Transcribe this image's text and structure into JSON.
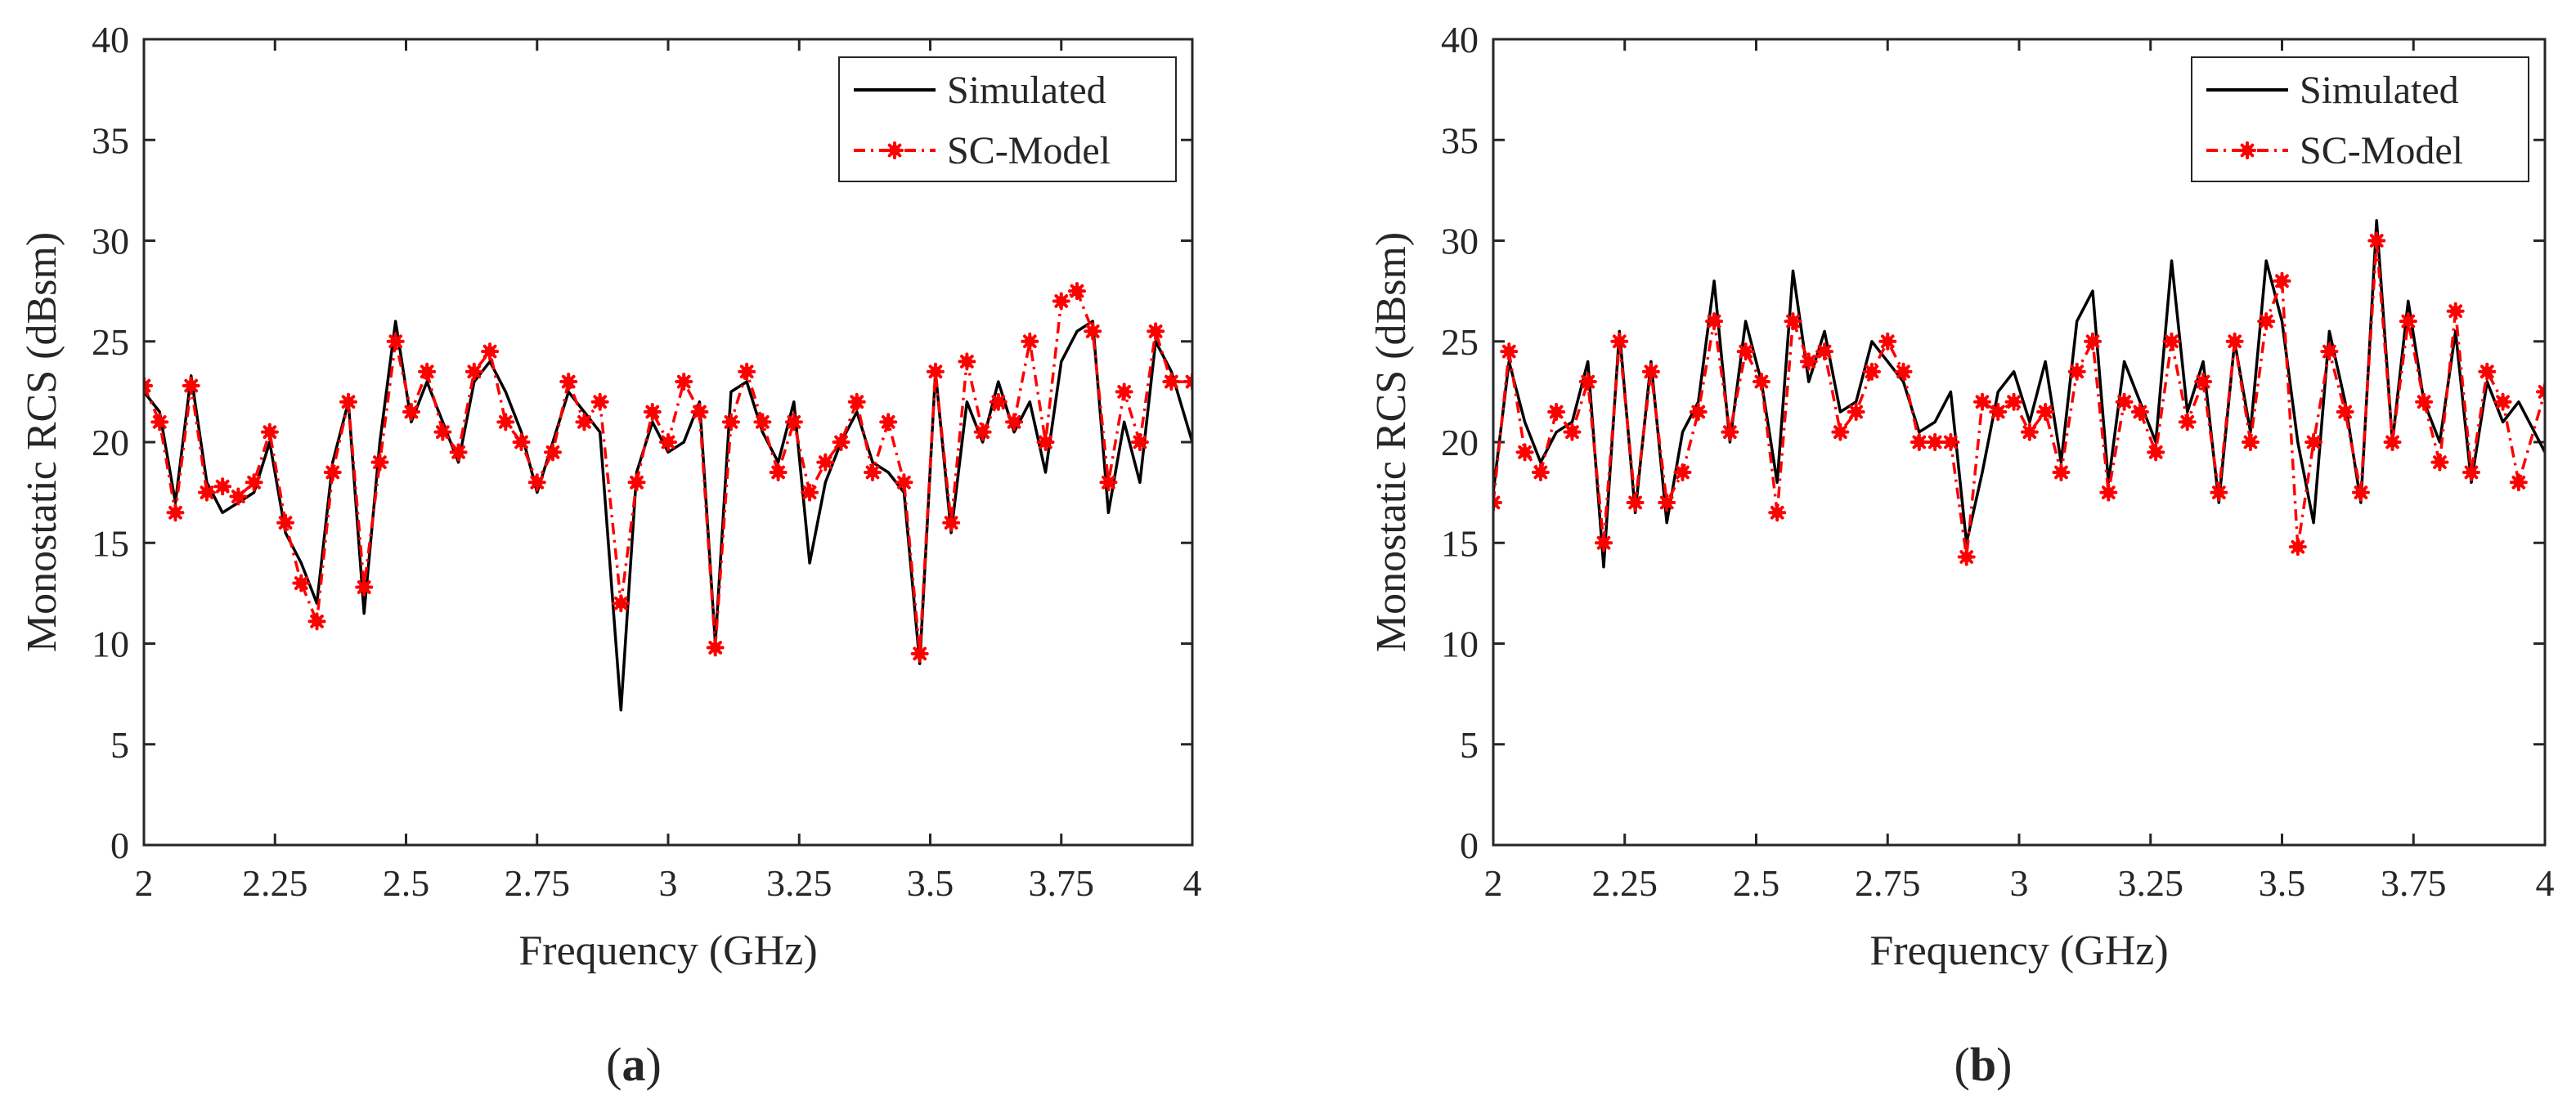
{
  "chart_data": [
    {
      "type": "line",
      "panel_label": "a",
      "caption_open": "(",
      "caption_close": ")",
      "xlabel": "Frequency (GHz)",
      "ylabel": "Monostatic RCS (dBsm)",
      "xlim": [
        2,
        4
      ],
      "ylim": [
        0,
        40
      ],
      "xticks": [
        2,
        2.25,
        2.5,
        2.75,
        3,
        3.25,
        3.5,
        3.75,
        4
      ],
      "xtick_labels": [
        "2",
        "2.25",
        "2.5",
        "2.75",
        "3",
        "3.25",
        "3.5",
        "3.75",
        "4"
      ],
      "yticks": [
        0,
        5,
        10,
        15,
        20,
        25,
        30,
        35,
        40
      ],
      "ytick_labels": [
        "0",
        "5",
        "10",
        "15",
        "20",
        "25",
        "30",
        "35",
        "40"
      ],
      "grid": false,
      "legend_position": "top-right",
      "colors": {
        "simulated": "#000000",
        "model": "#ff0000"
      },
      "series": [
        {
          "name": "Simulated",
          "style": "solid",
          "x": [
            2.0,
            2.03,
            2.06,
            2.09,
            2.12,
            2.15,
            2.18,
            2.21,
            2.24,
            2.27,
            2.3,
            2.33,
            2.36,
            2.39,
            2.42,
            2.45,
            2.48,
            2.51,
            2.54,
            2.57,
            2.6,
            2.63,
            2.66,
            2.69,
            2.72,
            2.75,
            2.78,
            2.81,
            2.84,
            2.87,
            2.91,
            2.94,
            2.97,
            3.0,
            3.03,
            3.06,
            3.09,
            3.12,
            3.15,
            3.18,
            3.21,
            3.24,
            3.27,
            3.3,
            3.33,
            3.36,
            3.39,
            3.42,
            3.45,
            3.48,
            3.51,
            3.54,
            3.57,
            3.6,
            3.63,
            3.66,
            3.69,
            3.72,
            3.75,
            3.78,
            3.81,
            3.84,
            3.87,
            3.9,
            3.93,
            3.96,
            4.0
          ],
          "values": [
            22.5,
            21.5,
            17.0,
            23.3,
            18.0,
            16.5,
            17.0,
            17.5,
            20.0,
            15.5,
            14.0,
            12.0,
            19.0,
            22.0,
            11.5,
            20.0,
            26.0,
            21.0,
            23.0,
            21.0,
            19.0,
            23.0,
            24.0,
            22.5,
            20.5,
            17.5,
            20.0,
            22.5,
            21.5,
            20.5,
            6.7,
            18.5,
            21.0,
            19.5,
            20.0,
            22.0,
            10.0,
            22.5,
            23.0,
            20.5,
            19.0,
            22.0,
            14.0,
            18.0,
            20.0,
            21.5,
            19.0,
            18.5,
            17.5,
            9.0,
            23.5,
            15.5,
            22.0,
            20.0,
            23.0,
            20.5,
            22.0,
            18.5,
            24.0,
            25.5,
            26.0,
            16.5,
            21.0,
            18.0,
            25.0,
            23.5,
            20.0
          ]
        },
        {
          "name": "SC-Model",
          "style": "dashdot-marker",
          "x": [
            2.0,
            2.03,
            2.06,
            2.09,
            2.12,
            2.15,
            2.18,
            2.21,
            2.24,
            2.27,
            2.3,
            2.33,
            2.36,
            2.39,
            2.42,
            2.45,
            2.48,
            2.51,
            2.54,
            2.57,
            2.6,
            2.63,
            2.66,
            2.69,
            2.72,
            2.75,
            2.78,
            2.81,
            2.84,
            2.87,
            2.91,
            2.94,
            2.97,
            3.0,
            3.03,
            3.06,
            3.09,
            3.12,
            3.15,
            3.18,
            3.21,
            3.24,
            3.27,
            3.3,
            3.33,
            3.36,
            3.39,
            3.42,
            3.45,
            3.48,
            3.51,
            3.54,
            3.57,
            3.6,
            3.63,
            3.66,
            3.69,
            3.72,
            3.75,
            3.78,
            3.81,
            3.84,
            3.87,
            3.9,
            3.93,
            3.96,
            4.0
          ],
          "values": [
            22.8,
            21.0,
            16.5,
            22.8,
            17.5,
            17.8,
            17.3,
            18.0,
            20.5,
            16.0,
            13.0,
            11.1,
            18.5,
            22.0,
            12.8,
            19.0,
            25.0,
            21.5,
            23.5,
            20.5,
            19.5,
            23.5,
            24.5,
            21.0,
            20.0,
            18.0,
            19.5,
            23.0,
            21.0,
            22.0,
            12.0,
            18.0,
            21.5,
            20.0,
            23.0,
            21.5,
            9.8,
            21.0,
            23.5,
            21.0,
            18.5,
            21.0,
            17.5,
            19.0,
            20.0,
            22.0,
            18.5,
            21.0,
            18.0,
            9.5,
            23.5,
            16.0,
            24.0,
            20.5,
            22.0,
            21.0,
            25.0,
            20.0,
            27.0,
            27.5,
            25.5,
            18.0,
            22.5,
            20.0,
            25.5,
            23.0,
            23.0
          ]
        }
      ]
    },
    {
      "type": "line",
      "panel_label": "b",
      "caption_open": "(",
      "caption_close": ")",
      "xlabel": "Frequency (GHz)",
      "ylabel": "Monostatic RCS (dBsm)",
      "xlim": [
        2,
        4
      ],
      "ylim": [
        0,
        40
      ],
      "xticks": [
        2,
        2.25,
        2.5,
        2.75,
        3,
        3.25,
        3.5,
        3.75,
        4
      ],
      "xtick_labels": [
        "2",
        "2.25",
        "2.5",
        "2.75",
        "3",
        "3.25",
        "3.5",
        "3.75",
        "4"
      ],
      "yticks": [
        0,
        5,
        10,
        15,
        20,
        25,
        30,
        35,
        40
      ],
      "ytick_labels": [
        "0",
        "5",
        "10",
        "15",
        "20",
        "25",
        "30",
        "35",
        "40"
      ],
      "grid": false,
      "legend_position": "top-right",
      "colors": {
        "simulated": "#000000",
        "model": "#ff0000"
      },
      "series": [
        {
          "name": "Simulated",
          "style": "solid",
          "x": [
            2.0,
            2.03,
            2.06,
            2.09,
            2.12,
            2.15,
            2.18,
            2.21,
            2.24,
            2.27,
            2.3,
            2.33,
            2.36,
            2.39,
            2.42,
            2.45,
            2.48,
            2.51,
            2.54,
            2.57,
            2.6,
            2.63,
            2.66,
            2.69,
            2.72,
            2.75,
            2.78,
            2.81,
            2.84,
            2.87,
            2.9,
            2.93,
            2.96,
            2.99,
            3.02,
            3.05,
            3.08,
            3.11,
            3.14,
            3.17,
            3.2,
            3.23,
            3.26,
            3.29,
            3.32,
            3.35,
            3.38,
            3.41,
            3.44,
            3.47,
            3.5,
            3.53,
            3.56,
            3.59,
            3.62,
            3.65,
            3.68,
            3.71,
            3.74,
            3.77,
            3.8,
            3.83,
            3.86,
            3.89,
            3.92,
            3.95,
            4.0
          ],
          "values": [
            17.5,
            24.0,
            21.0,
            19.0,
            20.5,
            21.0,
            24.0,
            13.8,
            25.5,
            16.5,
            24.0,
            16.0,
            20.5,
            22.0,
            28.0,
            20.0,
            26.0,
            23.0,
            18.0,
            28.5,
            23.0,
            25.5,
            21.5,
            22.0,
            25.0,
            24.0,
            23.0,
            20.5,
            21.0,
            22.5,
            15.0,
            18.5,
            22.5,
            23.5,
            21.0,
            24.0,
            19.0,
            26.0,
            27.5,
            18.0,
            24.0,
            22.0,
            20.0,
            29.0,
            21.5,
            24.0,
            17.0,
            25.0,
            20.5,
            29.0,
            26.0,
            20.0,
            16.0,
            25.5,
            22.0,
            17.0,
            31.0,
            20.0,
            27.0,
            22.0,
            20.0,
            25.5,
            18.0,
            23.0,
            21.0,
            22.0,
            19.5
          ]
        },
        {
          "name": "SC-Model",
          "style": "dashdot-marker",
          "x": [
            2.0,
            2.03,
            2.06,
            2.09,
            2.12,
            2.15,
            2.18,
            2.21,
            2.24,
            2.27,
            2.3,
            2.33,
            2.36,
            2.39,
            2.42,
            2.45,
            2.48,
            2.51,
            2.54,
            2.57,
            2.6,
            2.63,
            2.66,
            2.69,
            2.72,
            2.75,
            2.78,
            2.81,
            2.84,
            2.87,
            2.9,
            2.93,
            2.96,
            2.99,
            3.02,
            3.05,
            3.08,
            3.11,
            3.14,
            3.17,
            3.2,
            3.23,
            3.26,
            3.29,
            3.32,
            3.35,
            3.38,
            3.41,
            3.44,
            3.47,
            3.5,
            3.53,
            3.56,
            3.59,
            3.62,
            3.65,
            3.68,
            3.71,
            3.74,
            3.77,
            3.8,
            3.83,
            3.86,
            3.89,
            3.92,
            3.95,
            4.0
          ],
          "values": [
            17.0,
            24.5,
            19.5,
            18.5,
            21.5,
            20.5,
            23.0,
            15.0,
            25.0,
            17.0,
            23.5,
            17.0,
            18.5,
            21.5,
            26.0,
            20.5,
            24.5,
            23.0,
            16.5,
            26.0,
            24.0,
            24.5,
            20.5,
            21.5,
            23.5,
            25.0,
            23.5,
            20.0,
            20.0,
            20.0,
            14.3,
            22.0,
            21.5,
            22.0,
            20.5,
            21.5,
            18.5,
            23.5,
            25.0,
            17.5,
            22.0,
            21.5,
            19.5,
            25.0,
            21.0,
            23.0,
            17.5,
            25.0,
            20.0,
            26.0,
            28.0,
            14.8,
            20.0,
            24.5,
            21.5,
            17.5,
            30.0,
            20.0,
            26.0,
            22.0,
            19.0,
            26.5,
            18.5,
            23.5,
            22.0,
            18.0,
            22.5
          ]
        }
      ]
    }
  ]
}
